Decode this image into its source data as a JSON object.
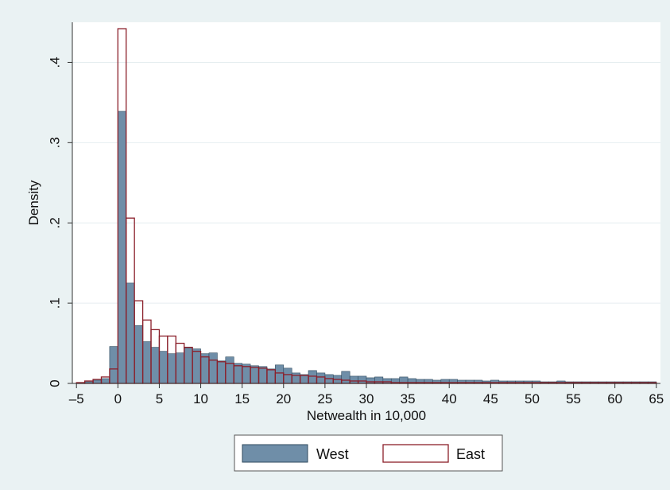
{
  "chart_data": {
    "type": "bar",
    "title": "",
    "xlabel": "Netwealth in 10,000",
    "ylabel": "Density",
    "xlim": [
      -5.5,
      65.5
    ],
    "ylim": [
      0,
      0.45
    ],
    "bin_width": 1,
    "x_ticks": [
      -5,
      0,
      5,
      10,
      15,
      20,
      25,
      30,
      35,
      40,
      45,
      50,
      55,
      60,
      65
    ],
    "x_tick_labels": [
      "–5",
      "0",
      "5",
      "10",
      "15",
      "20",
      "25",
      "30",
      "35",
      "40",
      "45",
      "50",
      "55",
      "60",
      "65"
    ],
    "y_ticks": [
      0,
      0.1,
      0.2,
      0.3,
      0.4
    ],
    "y_tick_labels": [
      "0",
      ".1",
      ".2",
      ".3",
      ".4"
    ],
    "grid": true,
    "legend_position": "bottom",
    "series": [
      {
        "name": "West",
        "style": "filled",
        "color": "#6f8ea8",
        "edge_color": "#2f4a5e",
        "x": [
          -5,
          -4,
          -3,
          -2,
          -1,
          0,
          1,
          2,
          3,
          4,
          5,
          6,
          7,
          8,
          9,
          10,
          11,
          12,
          13,
          14,
          15,
          16,
          17,
          18,
          19,
          20,
          21,
          22,
          23,
          24,
          25,
          26,
          27,
          28,
          29,
          30,
          31,
          32,
          33,
          34,
          35,
          36,
          37,
          38,
          39,
          40,
          41,
          42,
          43,
          44,
          45,
          46,
          47,
          48,
          49,
          50,
          51,
          52,
          53,
          54,
          55,
          56,
          57,
          58,
          59,
          60,
          61,
          62,
          63,
          64
        ],
        "values": [
          0.001,
          0.002,
          0.004,
          0.006,
          0.046,
          0.339,
          0.125,
          0.072,
          0.052,
          0.045,
          0.04,
          0.037,
          0.038,
          0.044,
          0.043,
          0.037,
          0.038,
          0.028,
          0.033,
          0.025,
          0.024,
          0.022,
          0.021,
          0.018,
          0.023,
          0.019,
          0.013,
          0.011,
          0.016,
          0.013,
          0.011,
          0.01,
          0.015,
          0.009,
          0.009,
          0.007,
          0.008,
          0.006,
          0.006,
          0.008,
          0.006,
          0.005,
          0.005,
          0.004,
          0.005,
          0.005,
          0.004,
          0.004,
          0.004,
          0.003,
          0.004,
          0.003,
          0.003,
          0.003,
          0.003,
          0.003,
          0.002,
          0.002,
          0.003,
          0.002,
          0.002,
          0.002,
          0.002,
          0.002,
          0.002,
          0.002,
          0.002,
          0.002,
          0.002,
          0.002
        ]
      },
      {
        "name": "East",
        "style": "outline",
        "color": "#8b1f2a",
        "x": [
          -5,
          -4,
          -3,
          -2,
          -1,
          0,
          1,
          2,
          3,
          4,
          5,
          6,
          7,
          8,
          9,
          10,
          11,
          12,
          13,
          14,
          15,
          16,
          17,
          18,
          19,
          20,
          21,
          22,
          23,
          24,
          25,
          26,
          27,
          28,
          29,
          30,
          31,
          32,
          33,
          34,
          35,
          36,
          37,
          38,
          39,
          40,
          41,
          42,
          43,
          44,
          45,
          46,
          47,
          48,
          49,
          50,
          51,
          52,
          53,
          54,
          55,
          56,
          57,
          58,
          59,
          60,
          61,
          62,
          63,
          64
        ],
        "values": [
          0.001,
          0.003,
          0.005,
          0.008,
          0.018,
          0.442,
          0.206,
          0.103,
          0.079,
          0.067,
          0.059,
          0.059,
          0.05,
          0.045,
          0.04,
          0.033,
          0.029,
          0.027,
          0.025,
          0.022,
          0.021,
          0.02,
          0.019,
          0.017,
          0.013,
          0.011,
          0.01,
          0.01,
          0.009,
          0.008,
          0.006,
          0.005,
          0.004,
          0.003,
          0.003,
          0.002,
          0.002,
          0.002,
          0.001,
          0.001,
          0.001,
          0.001,
          0.001,
          0.001,
          0.001,
          0.001,
          0.001,
          0.001,
          0.001,
          0.001,
          0.001,
          0.001,
          0.001,
          0.001,
          0.001,
          0.001,
          0.001,
          0.001,
          0.001,
          0.001,
          0.001,
          0.001,
          0.001,
          0.001,
          0.001,
          0.001,
          0.001,
          0.001,
          0.001,
          0.001
        ]
      }
    ]
  }
}
